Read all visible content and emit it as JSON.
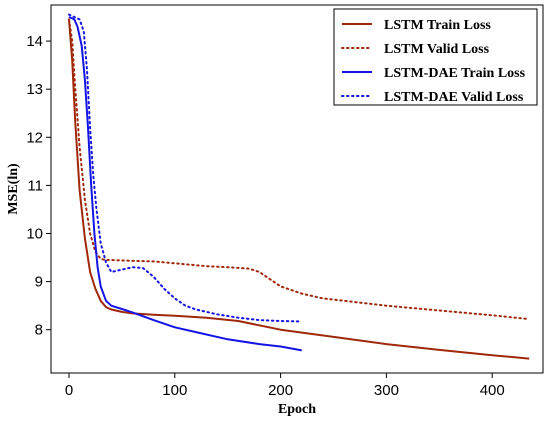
{
  "chart_data": {
    "type": "line",
    "title": "",
    "xlabel": "Epoch",
    "ylabel": "MSE(ln)",
    "xlim": [
      -17,
      448
    ],
    "ylim": [
      7.1,
      14.75
    ],
    "xticks": [
      0,
      100,
      200,
      300,
      400
    ],
    "yticks": [
      8,
      9,
      10,
      11,
      12,
      13,
      14
    ],
    "legend_position": "top-right",
    "series": [
      {
        "name": "LSTM Train Loss",
        "color": "#a0280a",
        "style": "solid",
        "x": [
          0,
          3,
          6,
          10,
          15,
          20,
          25,
          30,
          35,
          40,
          50,
          60,
          80,
          100,
          130,
          160,
          200,
          250,
          300,
          350,
          400,
          435
        ],
        "y": [
          14.45,
          13.6,
          12.3,
          10.9,
          9.9,
          9.2,
          8.85,
          8.6,
          8.47,
          8.42,
          8.37,
          8.34,
          8.31,
          8.29,
          8.25,
          8.18,
          8.0,
          7.85,
          7.7,
          7.58,
          7.47,
          7.4
        ]
      },
      {
        "name": "LSTM Valid Loss",
        "color": "#a0280a",
        "style": "dotted",
        "x": [
          0,
          3,
          6,
          10,
          15,
          20,
          25,
          30,
          35,
          40,
          60,
          80,
          100,
          130,
          150,
          170,
          180,
          190,
          200,
          220,
          240,
          260,
          300,
          350,
          400,
          435
        ],
        "y": [
          14.45,
          14.0,
          13.0,
          11.8,
          10.7,
          10.0,
          9.62,
          9.47,
          9.45,
          9.45,
          9.43,
          9.42,
          9.38,
          9.32,
          9.3,
          9.27,
          9.2,
          9.05,
          8.9,
          8.75,
          8.65,
          8.6,
          8.5,
          8.4,
          8.3,
          8.22
        ]
      },
      {
        "name": "LSTM-DAE Train Loss",
        "color": "#1414e6",
        "style": "solid",
        "x": [
          0,
          5,
          8,
          12,
          15,
          18,
          21,
          24,
          27,
          30,
          35,
          40,
          50,
          60,
          80,
          100,
          120,
          150,
          180,
          200,
          220
        ],
        "y": [
          14.5,
          14.45,
          14.3,
          13.9,
          13.2,
          12.2,
          11.0,
          10.0,
          9.3,
          8.9,
          8.6,
          8.5,
          8.43,
          8.36,
          8.2,
          8.05,
          7.95,
          7.8,
          7.7,
          7.65,
          7.57
        ]
      },
      {
        "name": "LSTM-DAE Valid Loss",
        "color": "#1414e6",
        "style": "dotted",
        "x": [
          0,
          5,
          10,
          14,
          17,
          20,
          23,
          26,
          30,
          35,
          40,
          50,
          60,
          70,
          80,
          90,
          100,
          110,
          120,
          140,
          160,
          180,
          200,
          220
        ],
        "y": [
          14.55,
          14.5,
          14.45,
          14.2,
          13.4,
          12.2,
          11.2,
          10.5,
          9.8,
          9.4,
          9.2,
          9.25,
          9.3,
          9.28,
          9.1,
          8.85,
          8.65,
          8.5,
          8.42,
          8.32,
          8.25,
          8.2,
          8.18,
          8.17
        ]
      }
    ]
  }
}
